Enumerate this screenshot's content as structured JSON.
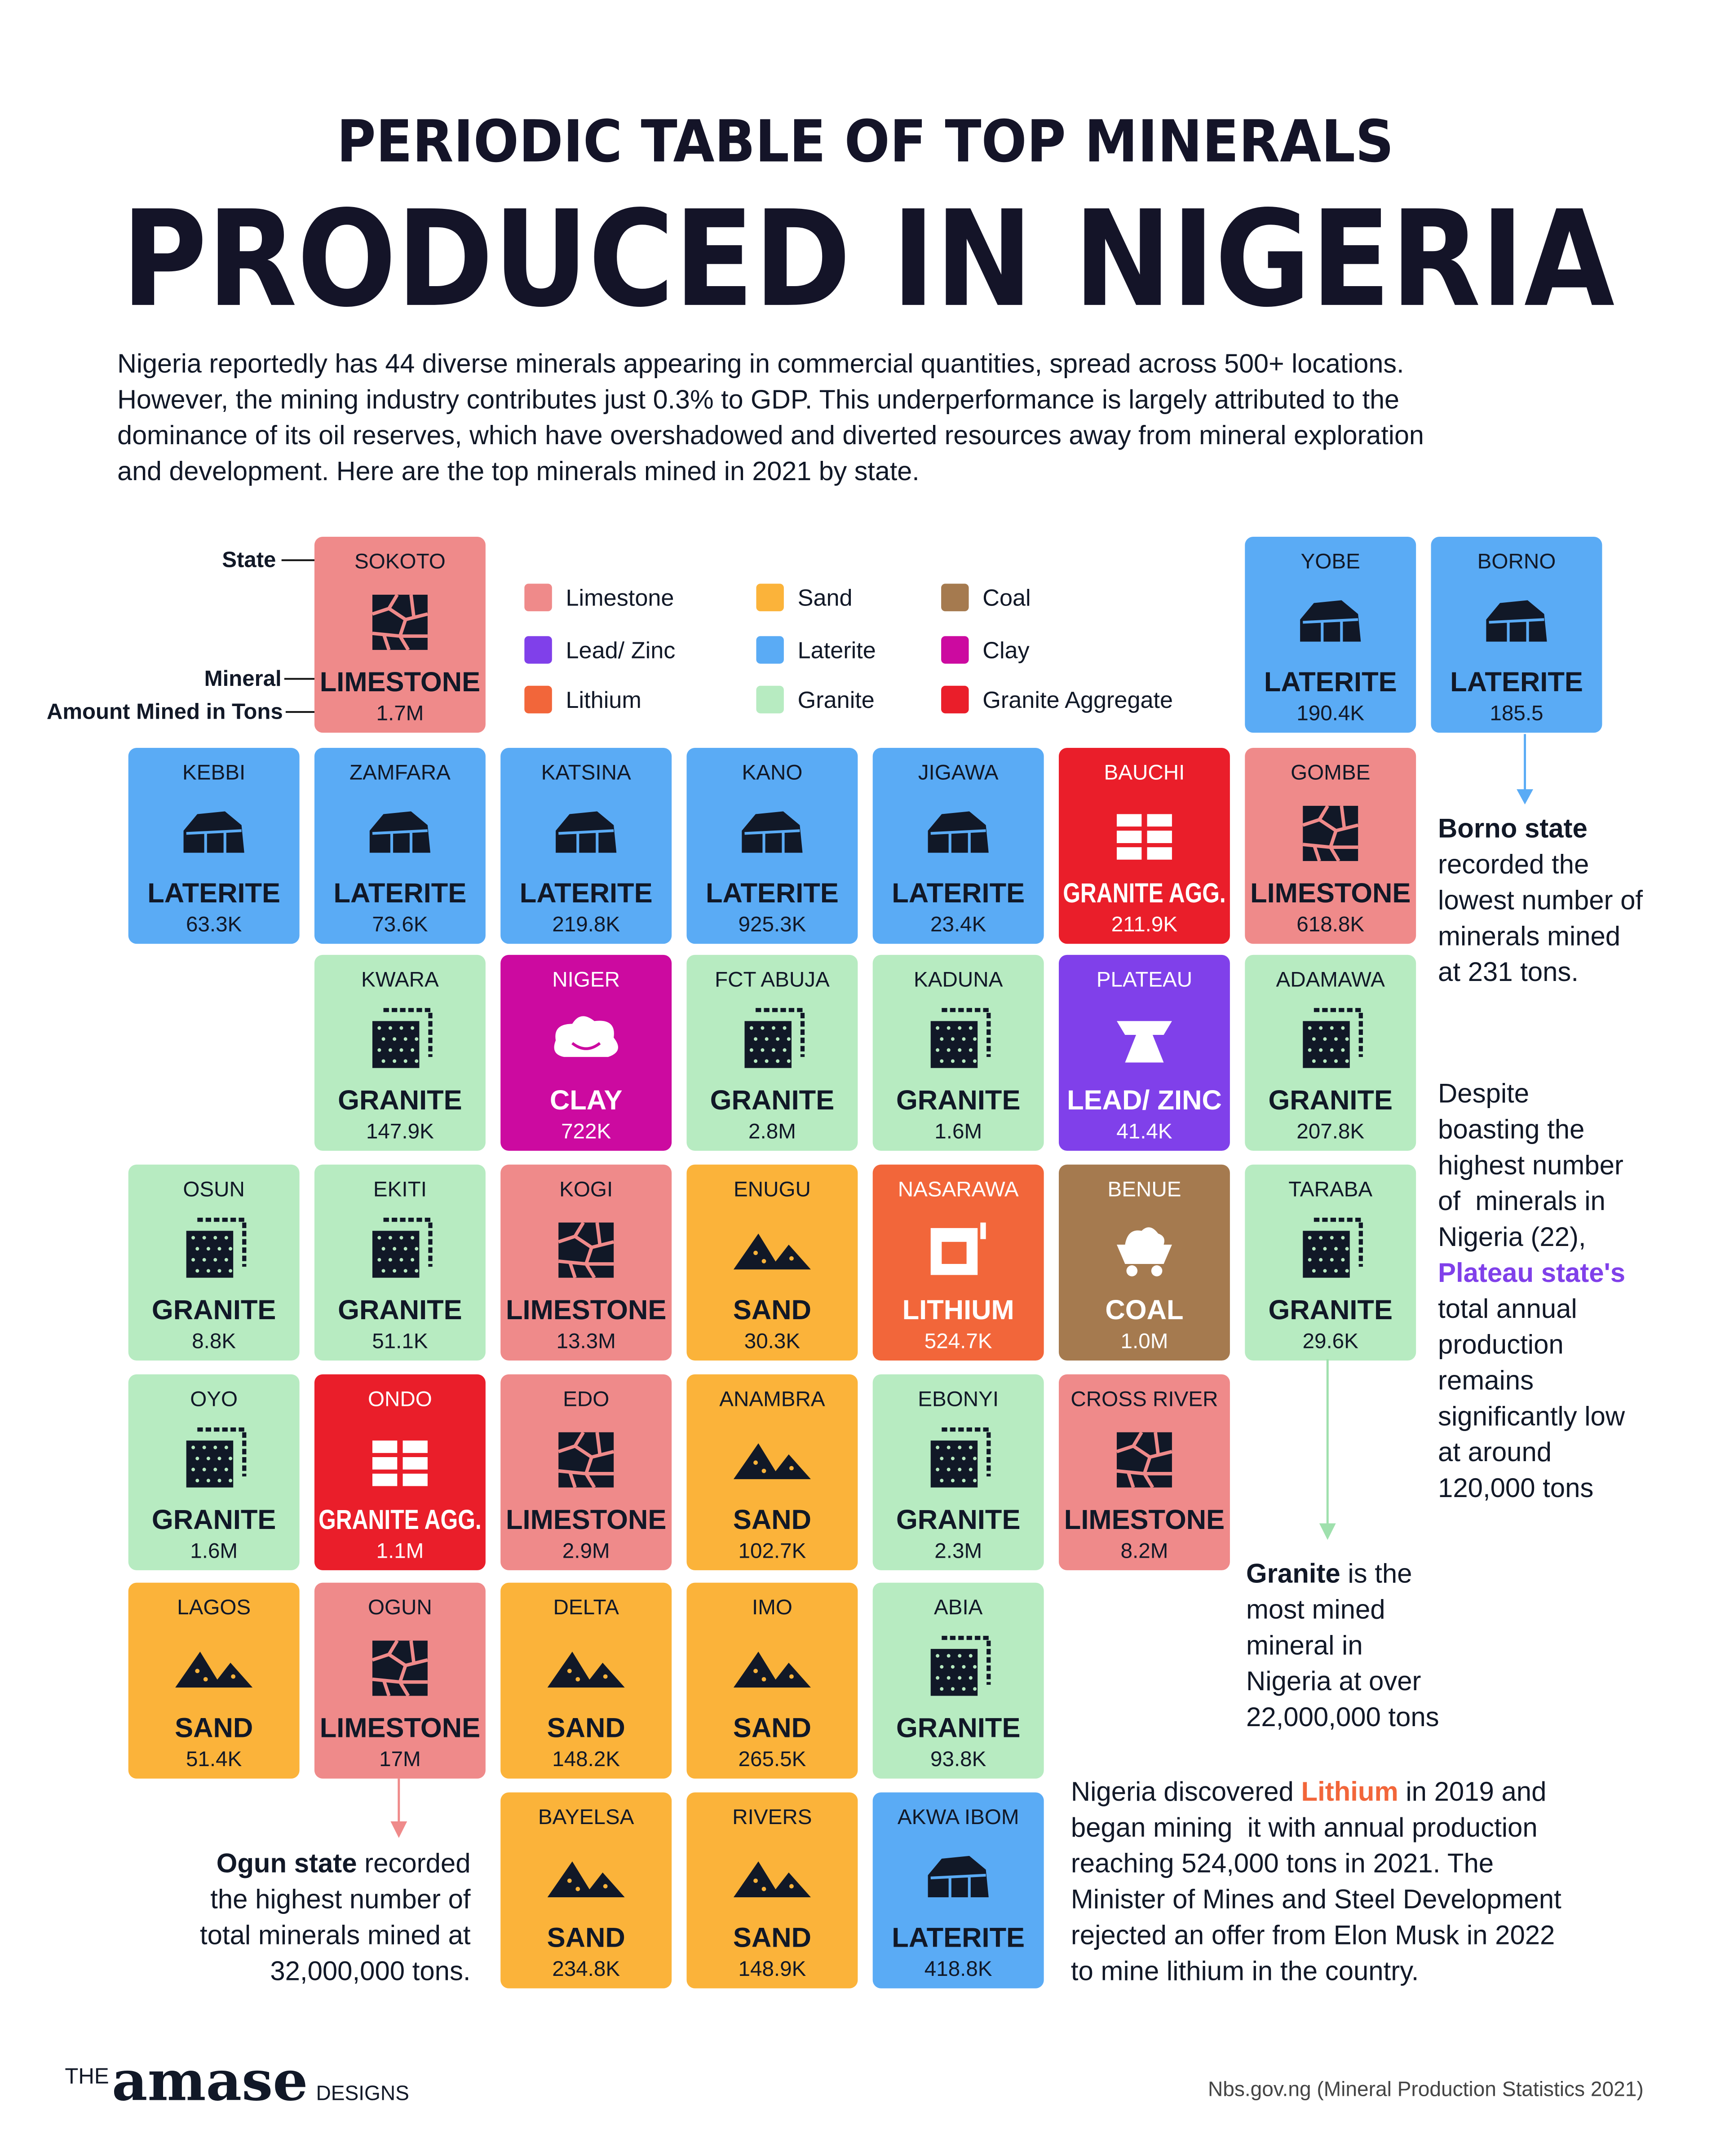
{
  "header": {
    "title_line1": "PERIODIC TABLE OF TOP MINERALS",
    "title_line2": "PRODUCED IN NIGERIA",
    "intro_lines": [
      "Nigeria reportedly has 44 diverse minerals appearing in commercial quantities, spread across 500+ locations.",
      "However, the mining industry contributes just 0.3% to GDP. This underperformance is largely attributed to the",
      "dominance of its oil reserves, which have overshadowed and diverted resources away from mineral exploration",
      "and development. Here are the top minerals mined in 2021 by state."
    ]
  },
  "guide": {
    "state": "State",
    "mineral": "Mineral",
    "amount": "Amount Mined in Tons"
  },
  "legend": [
    {
      "label": "Limestone",
      "color": "#ef8a8a"
    },
    {
      "label": "Sand",
      "color": "#fbb33a"
    },
    {
      "label": "Coal",
      "color": "#a57a4f"
    },
    {
      "label": "Lead/ Zinc",
      "color": "#8040ea"
    },
    {
      "label": "Laterite",
      "color": "#5aabf5"
    },
    {
      "label": "Clay",
      "color": "#cc0aa0"
    },
    {
      "label": "Lithium",
      "color": "#f2663a"
    },
    {
      "label": "Granite",
      "color": "#b7ebc1"
    },
    {
      "label": "Granite Aggregate",
      "color": "#ea1e2a"
    }
  ],
  "tiles": [
    {
      "state": "SOKOTO",
      "mineral": "LIMESTONE",
      "amount": "1.7M",
      "color": "#ef8a8a",
      "text_color": "#111827"
    },
    {
      "state": "YOBE",
      "mineral": "LATERITE",
      "amount": "190.4K",
      "color": "#5aabf5",
      "text_color": "#111827"
    },
    {
      "state": "BORNO",
      "mineral": "LATERITE",
      "amount": "185.5",
      "color": "#5aabf5",
      "text_color": "#111827"
    },
    {
      "state": "KEBBI",
      "mineral": "LATERITE",
      "amount": "63.3K",
      "color": "#5aabf5",
      "text_color": "#111827"
    },
    {
      "state": "ZAMFARA",
      "mineral": "LATERITE",
      "amount": "73.6K",
      "color": "#5aabf5",
      "text_color": "#111827"
    },
    {
      "state": "KATSINA",
      "mineral": "LATERITE",
      "amount": "219.8K",
      "color": "#5aabf5",
      "text_color": "#111827"
    },
    {
      "state": "KANO",
      "mineral": "LATERITE",
      "amount": "925.3K",
      "color": "#5aabf5",
      "text_color": "#111827"
    },
    {
      "state": "JIGAWA",
      "mineral": "LATERITE",
      "amount": "23.4K",
      "color": "#5aabf5",
      "text_color": "#111827"
    },
    {
      "state": "BAUCHI",
      "mineral": "GRANITE AGG.",
      "amount": "211.9K",
      "color": "#ea1e2a",
      "text_color": "#ffffff"
    },
    {
      "state": "GOMBE",
      "mineral": "LIMESTONE",
      "amount": "618.8K",
      "color": "#ef8a8a",
      "text_color": "#111827"
    },
    {
      "state": "KWARA",
      "mineral": "GRANITE",
      "amount": "147.9K",
      "color": "#b7ebc1",
      "text_color": "#111827"
    },
    {
      "state": "NIGER",
      "mineral": "CLAY",
      "amount": "722K",
      "color": "#cc0aa0",
      "text_color": "#ffffff"
    },
    {
      "state": "FCT ABUJA",
      "mineral": "GRANITE",
      "amount": "2.8M",
      "color": "#b7ebc1",
      "text_color": "#111827"
    },
    {
      "state": "KADUNA",
      "mineral": "GRANITE",
      "amount": "1.6M",
      "color": "#b7ebc1",
      "text_color": "#111827"
    },
    {
      "state": "PLATEAU",
      "mineral": "LEAD/ ZINC",
      "amount": "41.4K",
      "color": "#8040ea",
      "text_color": "#ffffff"
    },
    {
      "state": "ADAMAWA",
      "mineral": "GRANITE",
      "amount": "207.8K",
      "color": "#b7ebc1",
      "text_color": "#111827"
    },
    {
      "state": "OSUN",
      "mineral": "GRANITE",
      "amount": "8.8K",
      "color": "#b7ebc1",
      "text_color": "#111827"
    },
    {
      "state": "EKITI",
      "mineral": "GRANITE",
      "amount": "51.1K",
      "color": "#b7ebc1",
      "text_color": "#111827"
    },
    {
      "state": "KOGI",
      "mineral": "LIMESTONE",
      "amount": "13.3M",
      "color": "#ef8a8a",
      "text_color": "#111827"
    },
    {
      "state": "ENUGU",
      "mineral": "SAND",
      "amount": "30.3K",
      "color": "#fbb33a",
      "text_color": "#111827"
    },
    {
      "state": "NASARAWA",
      "mineral": "LITHIUM",
      "amount": "524.7K",
      "color": "#f2663a",
      "text_color": "#ffffff"
    },
    {
      "state": "BENUE",
      "mineral": "COAL",
      "amount": "1.0M",
      "color": "#a57a4f",
      "text_color": "#ffffff"
    },
    {
      "state": "TARABA",
      "mineral": "GRANITE",
      "amount": "29.6K",
      "color": "#b7ebc1",
      "text_color": "#111827"
    },
    {
      "state": "OYO",
      "mineral": "GRANITE",
      "amount": "1.6M",
      "color": "#b7ebc1",
      "text_color": "#111827"
    },
    {
      "state": "ONDO",
      "mineral": "GRANITE AGG.",
      "amount": "1.1M",
      "color": "#ea1e2a",
      "text_color": "#ffffff"
    },
    {
      "state": "EDO",
      "mineral": "LIMESTONE",
      "amount": "2.9M",
      "color": "#ef8a8a",
      "text_color": "#111827"
    },
    {
      "state": "ANAMBRA",
      "mineral": "SAND",
      "amount": "102.7K",
      "color": "#fbb33a",
      "text_color": "#111827"
    },
    {
      "state": "EBONYI",
      "mineral": "GRANITE",
      "amount": "2.3M",
      "color": "#b7ebc1",
      "text_color": "#111827"
    },
    {
      "state": "CROSS RIVER",
      "mineral": "LIMESTONE",
      "amount": "8.2M",
      "color": "#ef8a8a",
      "text_color": "#111827"
    },
    {
      "state": "LAGOS",
      "mineral": "SAND",
      "amount": "51.4K",
      "color": "#fbb33a",
      "text_color": "#111827"
    },
    {
      "state": "OGUN",
      "mineral": "LIMESTONE",
      "amount": "17M",
      "color": "#ef8a8a",
      "text_color": "#111827"
    },
    {
      "state": "DELTA",
      "mineral": "SAND",
      "amount": "148.2K",
      "color": "#fbb33a",
      "text_color": "#111827"
    },
    {
      "state": "IMO",
      "mineral": "SAND",
      "amount": "265.5K",
      "color": "#fbb33a",
      "text_color": "#111827"
    },
    {
      "state": "ABIA",
      "mineral": "GRANITE",
      "amount": "93.8K",
      "color": "#b7ebc1",
      "text_color": "#111827"
    },
    {
      "state": "BAYELSA",
      "mineral": "SAND",
      "amount": "234.8K",
      "color": "#fbb33a",
      "text_color": "#111827"
    },
    {
      "state": "RIVERS",
      "mineral": "SAND",
      "amount": "148.9K",
      "color": "#fbb33a",
      "text_color": "#111827"
    },
    {
      "state": "AKWA IBOM",
      "mineral": "LATERITE",
      "amount": "418.8K",
      "color": "#5aabf5",
      "text_color": "#111827"
    }
  ],
  "notes": [
    {
      "lines": [
        [
          {
            "text": "Borno state",
            "bold": true
          }
        ],
        [
          {
            "text": "recorded the"
          }
        ],
        [
          {
            "text": "lowest number of"
          }
        ],
        [
          {
            "text": "minerals mined"
          }
        ],
        [
          {
            "text": "at 231 tons."
          }
        ]
      ]
    },
    {
      "lines": [
        [
          {
            "text": "Despite"
          }
        ],
        [
          {
            "text": "boasting the"
          }
        ],
        [
          {
            "text": "highest number"
          }
        ],
        [
          {
            "text": "of  minerals in"
          }
        ],
        [
          {
            "text": "Nigeria (22),"
          }
        ],
        [
          {
            "text": "Plateau state's",
            "bold": true,
            "color": "#8040ea"
          }
        ],
        [
          {
            "text": "total annual"
          }
        ],
        [
          {
            "text": "production"
          }
        ],
        [
          {
            "text": "remains"
          }
        ],
        [
          {
            "text": "significantly low"
          }
        ],
        [
          {
            "text": "at around"
          }
        ],
        [
          {
            "text": "120,000 tons"
          }
        ]
      ]
    },
    {
      "lines": [
        [
          {
            "text": "Granite",
            "bold": true
          },
          {
            "text": " is the"
          }
        ],
        [
          {
            "text": "most mined"
          }
        ],
        [
          {
            "text": "mineral in"
          }
        ],
        [
          {
            "text": "Nigeria at over"
          }
        ],
        [
          {
            "text": "22,000,000 tons"
          }
        ]
      ]
    },
    {
      "lines": [
        [
          {
            "text": "Nigeria discovered "
          },
          {
            "text": "Lithium",
            "bold": true,
            "color": "#f2663a"
          },
          {
            "text": " in 2019 and"
          }
        ],
        [
          {
            "text": "began mining  it with annual production"
          }
        ],
        [
          {
            "text": "reaching 524,000 tons in 2021. The"
          }
        ],
        [
          {
            "text": "Minister of Mines and Steel Development"
          }
        ],
        [
          {
            "text": "rejected an offer from Elon Musk in 2022"
          }
        ],
        [
          {
            "text": "to mine lithium in the country."
          }
        ]
      ]
    },
    {
      "lines": [
        [
          {
            "text": "Ogun state",
            "bold": true
          },
          {
            "text": " recorded"
          }
        ],
        [
          {
            "text": "the highest number of"
          }
        ],
        [
          {
            "text": "total minerals mined at"
          }
        ],
        [
          {
            "text": "32,000,000 tons."
          }
        ]
      ]
    }
  ],
  "footer": {
    "brand_the": "THE",
    "brand_name": "amase",
    "brand_designs": "DESIGNS",
    "source": "Nbs.gov.ng (Mineral Production Statistics 2021)"
  }
}
